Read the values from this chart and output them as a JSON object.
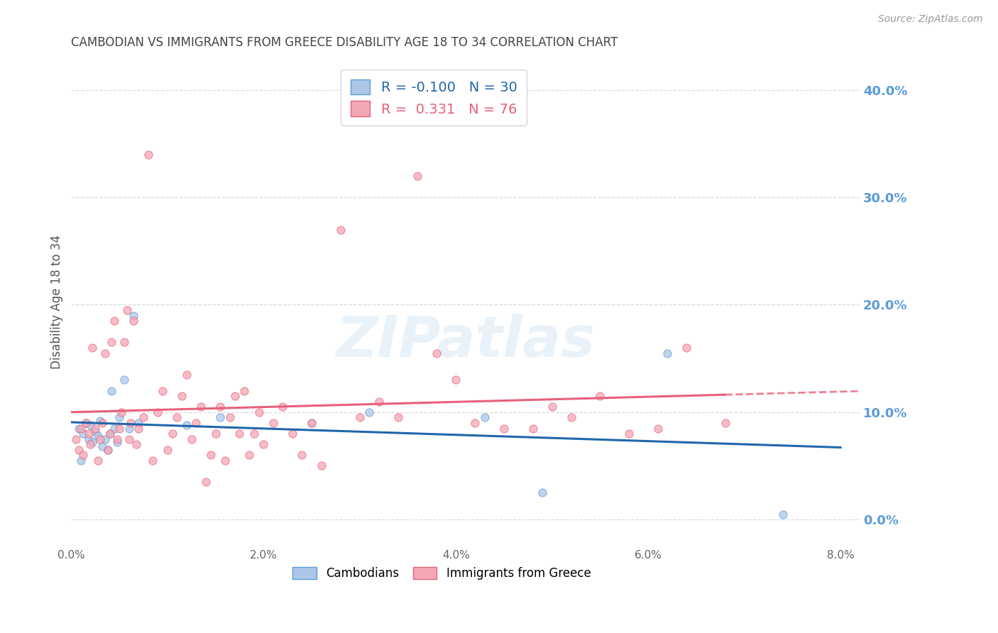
{
  "title": "CAMBODIAN VS IMMIGRANTS FROM GREECE DISABILITY AGE 18 TO 34 CORRELATION CHART",
  "source": "Source: ZipAtlas.com",
  "ylabel": "Disability Age 18 to 34",
  "xlim": [
    0.0,
    0.082
  ],
  "ylim": [
    -0.025,
    0.43
  ],
  "xticks": [
    0.0,
    0.02,
    0.04,
    0.06,
    0.08
  ],
  "xticklabels": [
    "0.0%",
    "2.0%",
    "4.0%",
    "6.0%",
    "8.0%"
  ],
  "yticks_right": [
    0.0,
    0.1,
    0.2,
    0.3,
    0.4
  ],
  "yticklabels_right": [
    "0.0%",
    "10.0%",
    "20.0%",
    "30.0%",
    "40.0%"
  ],
  "background_color": "#ffffff",
  "grid_color": "#d0d0d0",
  "title_color": "#444444",
  "right_axis_color": "#5b9bd5",
  "cambodian_color": "#aec6e8",
  "cambodian_edge": "#5b9bd5",
  "greece_color": "#f4a7b5",
  "greece_edge": "#e8607a",
  "trend_cambodian_color": "#2166ac",
  "trend_greece_color": "#e8607a",
  "legend_R1": "-0.100",
  "legend_N1": "30",
  "legend_R2": "0.331",
  "legend_N2": "76",
  "cambodian_x": [
    0.0008,
    0.001,
    0.0012,
    0.0015,
    0.0018,
    0.002,
    0.0022,
    0.0025,
    0.0028,
    0.003,
    0.0032,
    0.0035,
    0.0038,
    0.004,
    0.0042,
    0.0045,
    0.0048,
    0.005,
    0.0055,
    0.006,
    0.0065,
    0.007,
    0.012,
    0.0155,
    0.025,
    0.031,
    0.043,
    0.049,
    0.062,
    0.074
  ],
  "cambodian_y": [
    0.085,
    0.055,
    0.08,
    0.09,
    0.075,
    0.088,
    0.072,
    0.082,
    0.078,
    0.092,
    0.068,
    0.075,
    0.065,
    0.08,
    0.12,
    0.085,
    0.072,
    0.095,
    0.13,
    0.085,
    0.19,
    0.09,
    0.088,
    0.095,
    0.09,
    0.1,
    0.095,
    0.025,
    0.155,
    0.005
  ],
  "greece_x": [
    0.0005,
    0.0008,
    0.001,
    0.0012,
    0.0015,
    0.0018,
    0.002,
    0.0022,
    0.0025,
    0.0028,
    0.003,
    0.0032,
    0.0035,
    0.0038,
    0.004,
    0.0042,
    0.0045,
    0.0048,
    0.005,
    0.0052,
    0.0055,
    0.0058,
    0.006,
    0.0062,
    0.0065,
    0.0068,
    0.007,
    0.0075,
    0.008,
    0.0085,
    0.009,
    0.0095,
    0.01,
    0.0105,
    0.011,
    0.0115,
    0.012,
    0.0125,
    0.013,
    0.0135,
    0.014,
    0.0145,
    0.015,
    0.0155,
    0.016,
    0.0165,
    0.017,
    0.0175,
    0.018,
    0.0185,
    0.019,
    0.0195,
    0.02,
    0.021,
    0.022,
    0.023,
    0.024,
    0.025,
    0.026,
    0.028,
    0.03,
    0.032,
    0.034,
    0.036,
    0.038,
    0.04,
    0.042,
    0.045,
    0.048,
    0.05,
    0.052,
    0.055,
    0.058,
    0.061,
    0.064,
    0.068
  ],
  "greece_y": [
    0.075,
    0.065,
    0.085,
    0.06,
    0.09,
    0.08,
    0.07,
    0.16,
    0.085,
    0.055,
    0.075,
    0.09,
    0.155,
    0.065,
    0.08,
    0.165,
    0.185,
    0.075,
    0.085,
    0.1,
    0.165,
    0.195,
    0.075,
    0.09,
    0.185,
    0.07,
    0.085,
    0.095,
    0.34,
    0.055,
    0.1,
    0.12,
    0.065,
    0.08,
    0.095,
    0.115,
    0.135,
    0.075,
    0.09,
    0.105,
    0.035,
    0.06,
    0.08,
    0.105,
    0.055,
    0.095,
    0.115,
    0.08,
    0.12,
    0.06,
    0.08,
    0.1,
    0.07,
    0.09,
    0.105,
    0.08,
    0.06,
    0.09,
    0.05,
    0.27,
    0.095,
    0.11,
    0.095,
    0.32,
    0.155,
    0.13,
    0.09,
    0.085,
    0.085,
    0.105,
    0.095,
    0.115,
    0.08,
    0.085,
    0.16,
    0.09
  ],
  "marker_size": 65,
  "marker_alpha": 0.75,
  "watermark_text": "ZIPatlas",
  "watermark_color": "#cfe2f3",
  "watermark_fontsize": 58,
  "watermark_alpha": 0.45
}
